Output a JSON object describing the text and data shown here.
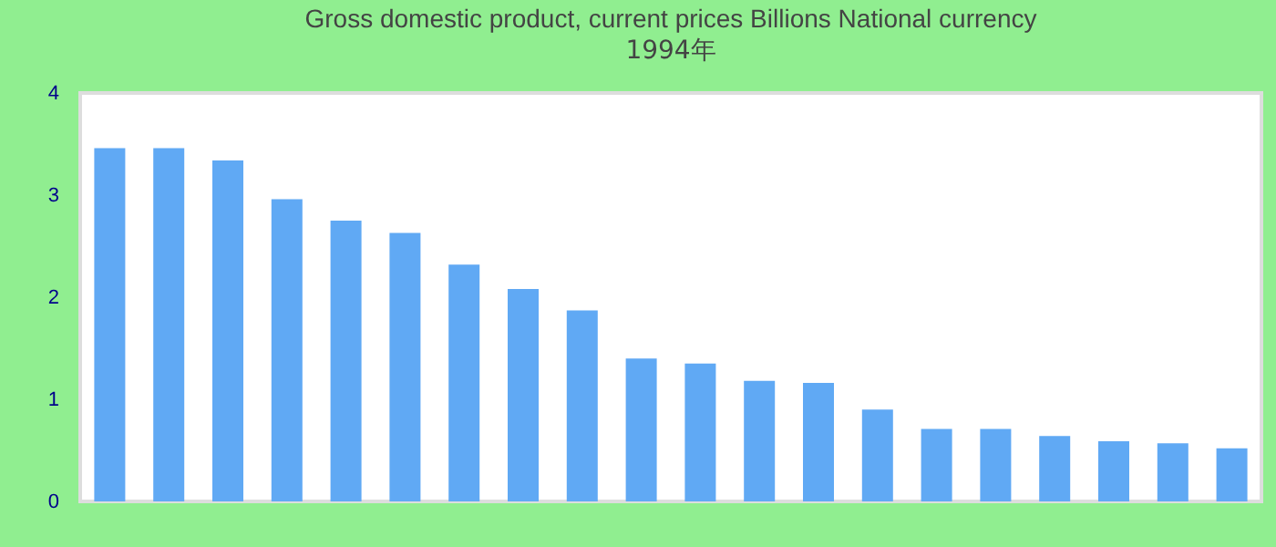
{
  "chart_data": {
    "type": "bar",
    "title": "Gross domestic product, current prices Billions National currency",
    "subtitle": "1994年",
    "categories": [
      null,
      null,
      null,
      null,
      null,
      null,
      null,
      null,
      null,
      null,
      null,
      null,
      null,
      null,
      null,
      null,
      null,
      null,
      null,
      null
    ],
    "values": [
      3.46,
      3.46,
      3.34,
      2.96,
      2.75,
      2.63,
      2.32,
      2.08,
      1.87,
      1.4,
      1.35,
      1.18,
      1.16,
      0.9,
      0.71,
      0.71,
      0.64,
      0.59,
      0.57,
      0.52
    ],
    "color": "#60a9f4",
    "ylim": [
      0,
      4
    ],
    "yticks": [
      0,
      1,
      2,
      3,
      4
    ],
    "grid": false
  }
}
